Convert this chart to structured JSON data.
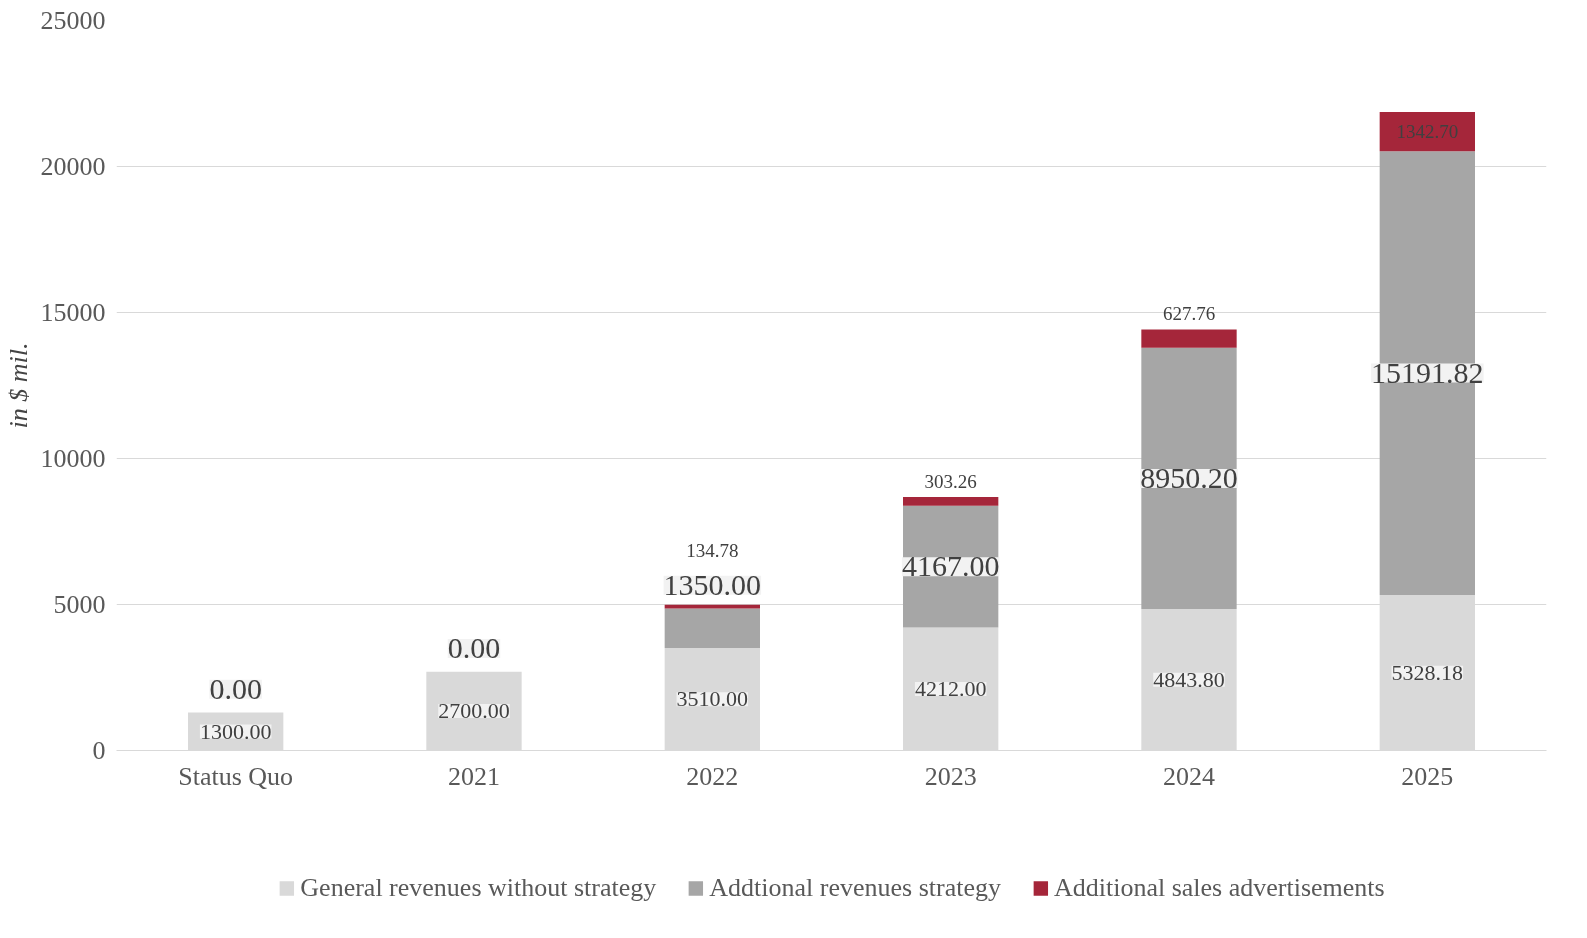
{
  "chart_data": {
    "type": "bar",
    "stacked": true,
    "ylabel": "in $ mil.",
    "categories": [
      "Status Quo",
      "2021",
      "2022",
      "2023",
      "2024",
      "2025"
    ],
    "ylim": [
      0,
      25000
    ],
    "yticks": [
      0,
      5000,
      10000,
      15000,
      20000,
      25000
    ],
    "grid": "y",
    "legend": "bottom",
    "series": [
      {
        "name": "General revenues without strategy",
        "color": "#d9d9d9",
        "values": [
          1300,
          2700,
          3510,
          4212,
          4843.8,
          5328.18
        ],
        "value_labels": [
          "1300.00",
          "2700.00",
          "3510.00",
          "4212.00",
          "4843.80",
          "5328.18"
        ]
      },
      {
        "name": "Addtional revenues strategy",
        "color": "#a6a6a6",
        "values": [
          0,
          0,
          1350,
          4167,
          8950.2,
          15191.82
        ],
        "value_labels": [
          "0.00",
          "0.00",
          "1350.00",
          "4167.00",
          "8950.20",
          "15191.82"
        ]
      },
      {
        "name": "Additional sales advertisements",
        "color": "#a5263a",
        "values": [
          null,
          null,
          134.78,
          303.26,
          627.76,
          1342.7
        ],
        "value_labels": [
          null,
          null,
          "134.78",
          "303.26",
          "627.76",
          "1342.70"
        ]
      }
    ]
  }
}
